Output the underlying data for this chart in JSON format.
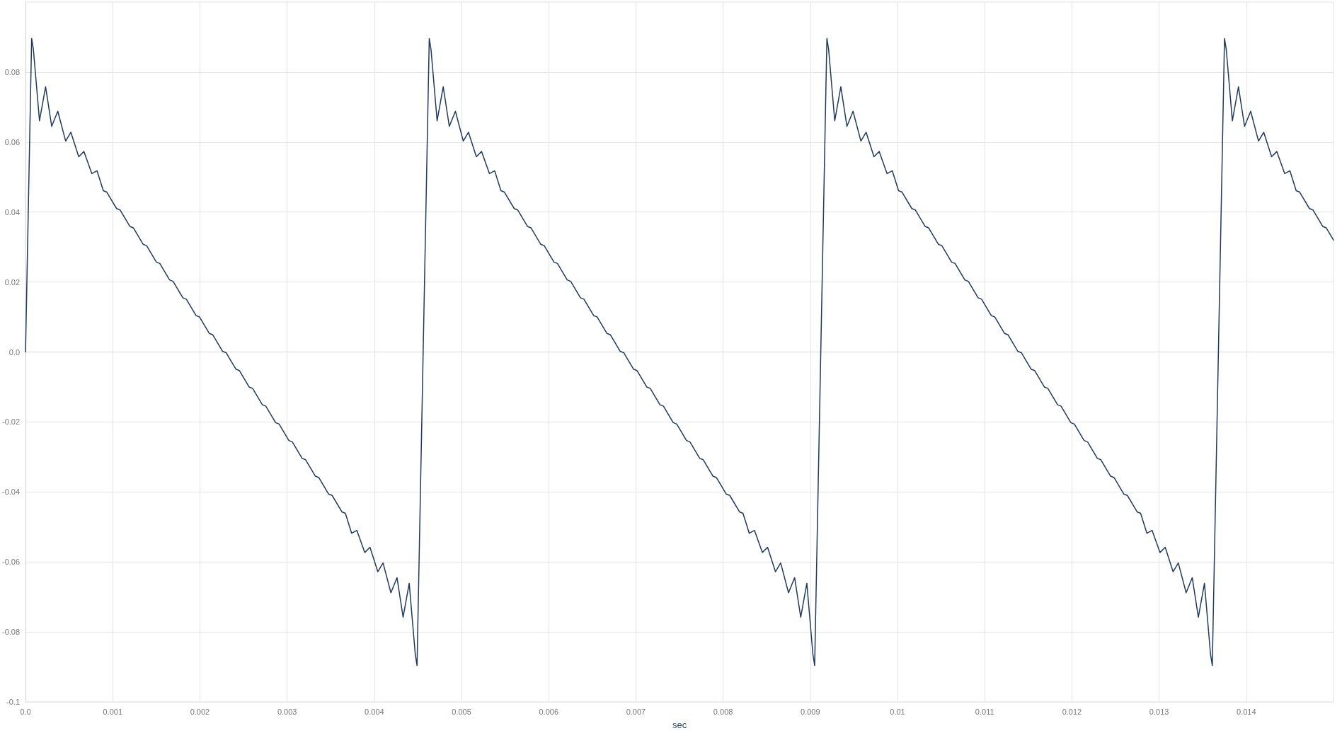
{
  "chart_data": {
    "type": "line",
    "xlabel": "sec",
    "xlim": [
      0,
      0.015
    ],
    "ylim": [
      -0.1,
      0.1
    ],
    "xticks": [
      {
        "value": 0,
        "label": "0.0"
      },
      0.001,
      0.002,
      0.003,
      0.004,
      0.005,
      0.006,
      0.007,
      0.008,
      0.009,
      0.01,
      0.011,
      0.012,
      0.013,
      0.014
    ],
    "yticks": [
      -0.1,
      -0.08,
      -0.06,
      -0.04,
      -0.02,
      {
        "value": 0,
        "label": "0.0"
      },
      0.02,
      0.04,
      0.06,
      0.08
    ],
    "grid": true,
    "series": [
      {
        "color": "#1f3a5f",
        "x": [
          0,
          7e-05,
          9e-05,
          0.00016,
          0.00023,
          0.0003,
          0.00037,
          0.00046,
          0.00052,
          0.00061,
          0.00067,
          0.00076,
          0.00082,
          0.000892,
          0.000932,
          0.001044,
          0.001084,
          0.001196,
          0.001236,
          0.001348,
          0.001388,
          0.0015,
          0.00154,
          0.001652,
          0.001692,
          0.001804,
          0.001844,
          0.001956,
          0.001996,
          0.002108,
          0.002148,
          0.00226,
          0.0023,
          0.002412,
          0.002452,
          0.002564,
          0.002604,
          0.002716,
          0.002756,
          0.002868,
          0.002908,
          0.00302,
          0.00306,
          0.003172,
          0.003212,
          0.003324,
          0.003364,
          0.003476,
          0.003516,
          0.003628,
          0.003668,
          0.00374,
          0.0038,
          0.00389,
          0.00395,
          0.00404,
          0.0041,
          0.00419,
          0.00426,
          0.00433,
          0.0044,
          0.00447,
          0.00449,
          0.00456,
          0.00463,
          0.00465,
          0.00472,
          0.00479,
          0.00486,
          0.00493,
          0.00502,
          0.00508,
          0.00517,
          0.00523,
          0.00532,
          0.00538,
          0.005452,
          0.005492,
          0.005604,
          0.005644,
          0.005756,
          0.005796,
          0.005908,
          0.005948,
          0.00606,
          0.0061,
          0.006212,
          0.006252,
          0.006364,
          0.006404,
          0.006516,
          0.006556,
          0.006668,
          0.006708,
          0.00682,
          0.00686,
          0.006972,
          0.007012,
          0.007124,
          0.007164,
          0.007276,
          0.007316,
          0.007428,
          0.007468,
          0.00758,
          0.00762,
          0.007732,
          0.007772,
          0.007884,
          0.007924,
          0.008036,
          0.008076,
          0.008188,
          0.008228,
          0.0083,
          0.00836,
          0.00845,
          0.00851,
          0.0086,
          0.00866,
          0.00875,
          0.00882,
          0.00889,
          0.00896,
          0.00903,
          0.00905,
          0.00912,
          0.00919,
          0.00921,
          0.00928,
          0.00935,
          0.00942,
          0.00949,
          0.00958,
          0.00964,
          0.00973,
          0.00979,
          0.00988,
          0.00994,
          0.010012,
          0.010052,
          0.010164,
          0.010204,
          0.010316,
          0.010356,
          0.010468,
          0.010508,
          0.01062,
          0.01066,
          0.010772,
          0.010812,
          0.010924,
          0.010964,
          0.011076,
          0.011116,
          0.011228,
          0.011268,
          0.01138,
          0.01142,
          0.011532,
          0.011572,
          0.011684,
          0.011724,
          0.011836,
          0.011876,
          0.011988,
          0.012028,
          0.01214,
          0.01218,
          0.012292,
          0.012332,
          0.012444,
          0.012484,
          0.012596,
          0.012636,
          0.012748,
          0.012788,
          0.01286,
          0.01292,
          0.01301,
          0.01307,
          0.01316,
          0.01322,
          0.01331,
          0.01338,
          0.01345,
          0.01352,
          0.01359,
          0.01361,
          0.01368,
          0.01375,
          0.01377,
          0.01384,
          0.01391,
          0.01398,
          0.01405,
          0.01414,
          0.0142,
          0.01429,
          0.01435,
          0.01444,
          0.0145,
          0.014572,
          0.014612,
          0.014724,
          0.014764,
          0.014876,
          0.014916,
          0.015
        ],
        "values": [
          0,
          0.0896,
          0.0865,
          0.0661,
          0.0758,
          0.0645,
          0.0688,
          0.0603,
          0.0628,
          0.0558,
          0.0573,
          0.051,
          0.0518,
          0.0461,
          0.0457,
          0.041,
          0.0406,
          0.0359,
          0.0355,
          0.0308,
          0.0304,
          0.0257,
          0.0253,
          0.0206,
          0.0202,
          0.0155,
          0.0151,
          0.0104,
          0.01,
          0.0053,
          0.0049,
          0.0002,
          -0.0002,
          -0.0049,
          -0.0053,
          -0.01,
          -0.0104,
          -0.0151,
          -0.0155,
          -0.0202,
          -0.0206,
          -0.0253,
          -0.0257,
          -0.0304,
          -0.0308,
          -0.0355,
          -0.0359,
          -0.0406,
          -0.041,
          -0.0457,
          -0.0461,
          -0.0518,
          -0.051,
          -0.0573,
          -0.0558,
          -0.0628,
          -0.0603,
          -0.0688,
          -0.0645,
          -0.0758,
          -0.0661,
          -0.0865,
          -0.0896,
          0,
          0.0896,
          0.0865,
          0.0661,
          0.0758,
          0.0645,
          0.0688,
          0.0603,
          0.0628,
          0.0558,
          0.0573,
          0.051,
          0.0518,
          0.0461,
          0.0457,
          0.041,
          0.0406,
          0.0359,
          0.0355,
          0.0308,
          0.0304,
          0.0257,
          0.0253,
          0.0206,
          0.0202,
          0.0155,
          0.0151,
          0.0104,
          0.01,
          0.0053,
          0.0049,
          0.0002,
          -0.0002,
          -0.0049,
          -0.0053,
          -0.01,
          -0.0104,
          -0.0151,
          -0.0155,
          -0.0202,
          -0.0206,
          -0.0253,
          -0.0257,
          -0.0304,
          -0.0308,
          -0.0355,
          -0.0359,
          -0.0406,
          -0.041,
          -0.0457,
          -0.0461,
          -0.0518,
          -0.051,
          -0.0573,
          -0.0558,
          -0.0628,
          -0.0603,
          -0.0688,
          -0.0645,
          -0.0758,
          -0.0661,
          -0.0865,
          -0.0896,
          0,
          0.0896,
          0.0865,
          0.0661,
          0.0758,
          0.0645,
          0.0688,
          0.0603,
          0.0628,
          0.0558,
          0.0573,
          0.051,
          0.0518,
          0.0461,
          0.0457,
          0.041,
          0.0406,
          0.0359,
          0.0355,
          0.0308,
          0.0304,
          0.0257,
          0.0253,
          0.0206,
          0.0202,
          0.0155,
          0.0151,
          0.0104,
          0.01,
          0.0053,
          0.0049,
          0.0002,
          -0.0002,
          -0.0049,
          -0.0053,
          -0.01,
          -0.0104,
          -0.0151,
          -0.0155,
          -0.0202,
          -0.0206,
          -0.0253,
          -0.0257,
          -0.0304,
          -0.0308,
          -0.0355,
          -0.0359,
          -0.0406,
          -0.041,
          -0.0457,
          -0.0461,
          -0.0518,
          -0.051,
          -0.0573,
          -0.0558,
          -0.0628,
          -0.0603,
          -0.0688,
          -0.0645,
          -0.0758,
          -0.0661,
          -0.0865,
          -0.0896,
          0,
          0.0896,
          0.0865,
          0.0661,
          0.0758,
          0.0645,
          0.0688,
          0.0603,
          0.0628,
          0.0558,
          0.0573,
          0.051,
          0.0518,
          0.0461,
          0.0457,
          0.041,
          0.0406,
          0.0359,
          0.0355,
          0.032
        ]
      }
    ]
  }
}
